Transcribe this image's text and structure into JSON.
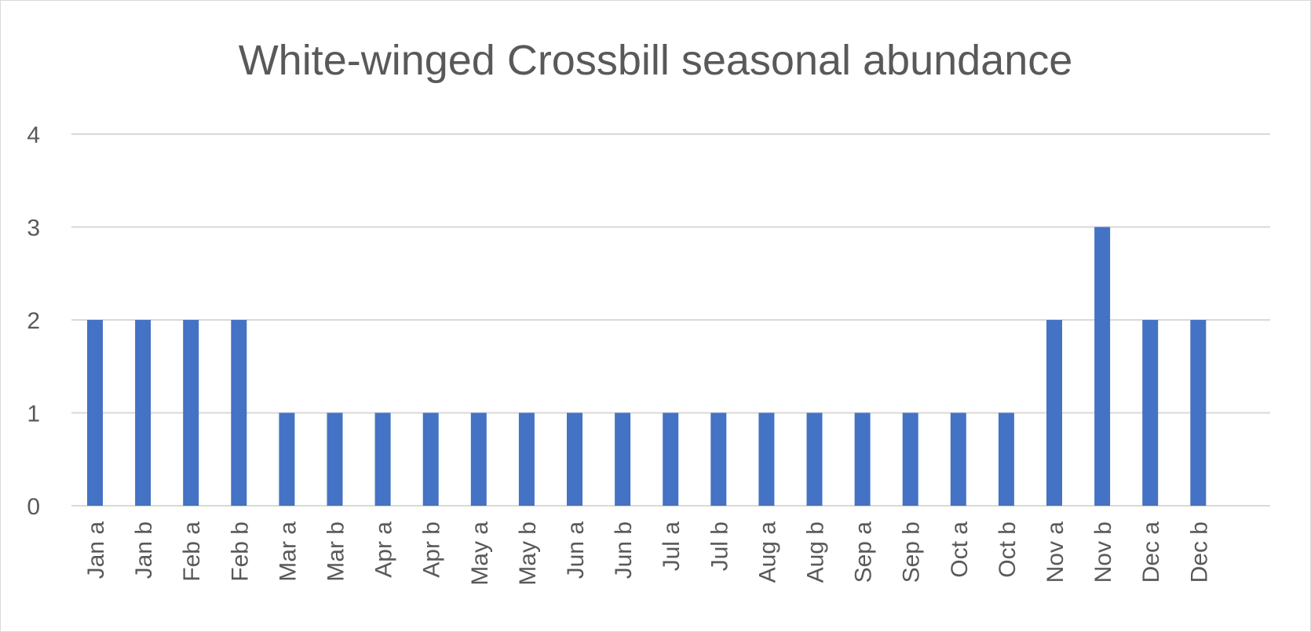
{
  "chart_data": {
    "type": "bar",
    "title": "White-winged Crossbill seasonal abundance",
    "xlabel": "",
    "ylabel": "",
    "categories": [
      "Jan a",
      "Jan b",
      "Feb a",
      "Feb b",
      "Mar a",
      "Mar b",
      "Apr a",
      "Apr b",
      "May a",
      "May b",
      "Jun a",
      "Jun b",
      "Jul a",
      "Jul b",
      "Aug a",
      "Aug b",
      "Sep a",
      "Sep b",
      "Oct a",
      "Oct b",
      "Nov a",
      "Nov b",
      "Dec a",
      "Dec b"
    ],
    "values": [
      2,
      2,
      2,
      2,
      1,
      1,
      1,
      1,
      1,
      1,
      1,
      1,
      1,
      1,
      1,
      1,
      1,
      1,
      1,
      1,
      2,
      3,
      2,
      2
    ],
    "ylim": [
      0,
      4
    ],
    "yticks": [
      "0",
      "1",
      "2",
      "3",
      "4"
    ],
    "grid": true,
    "legend": "none",
    "bar_color": "#4472c4",
    "grid_color": "#d9d9d9",
    "text_color": "#595959"
  }
}
